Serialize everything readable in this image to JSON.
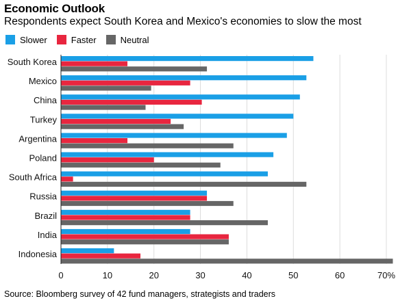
{
  "header": {
    "title": "Economic Outlook",
    "subtitle": "Respondents expect South Korea and Mexico's economies to slow the most"
  },
  "legend": [
    {
      "label": "Slower",
      "color": "#1a9fe6"
    },
    {
      "label": "Faster",
      "color": "#e8263f"
    },
    {
      "label": "Neutral",
      "color": "#666666"
    }
  ],
  "source": "Source: Bloomberg survey of 42 fund managers, strategists and traders",
  "chart_data": {
    "type": "bar",
    "orientation": "horizontal",
    "categories": [
      "South Korea",
      "Mexico",
      "China",
      "Turkey",
      "Argentina",
      "Poland",
      "South Africa",
      "Russia",
      "Brazil",
      "India",
      "Indonesia"
    ],
    "series": [
      {
        "name": "Slower",
        "color": "#1a9fe6",
        "values": [
          54.3,
          52.8,
          51.4,
          50.0,
          48.6,
          45.7,
          44.5,
          31.4,
          27.8,
          27.8,
          11.4
        ]
      },
      {
        "name": "Faster",
        "color": "#e8263f",
        "values": [
          14.3,
          27.8,
          30.3,
          23.6,
          14.3,
          20.0,
          2.6,
          31.4,
          27.8,
          36.1,
          17.1
        ]
      },
      {
        "name": "Neutral",
        "color": "#666666",
        "values": [
          31.4,
          19.4,
          18.2,
          26.4,
          37.1,
          34.3,
          52.8,
          37.1,
          44.5,
          36.1,
          71.4
        ]
      }
    ],
    "xlim": [
      0,
      70
    ],
    "xticks": [
      "0",
      "10",
      "20",
      "30",
      "40",
      "50",
      "60",
      "70%"
    ],
    "xtick_values": [
      0,
      10,
      20,
      30,
      40,
      50,
      60,
      70
    ],
    "grid": "vertical"
  }
}
